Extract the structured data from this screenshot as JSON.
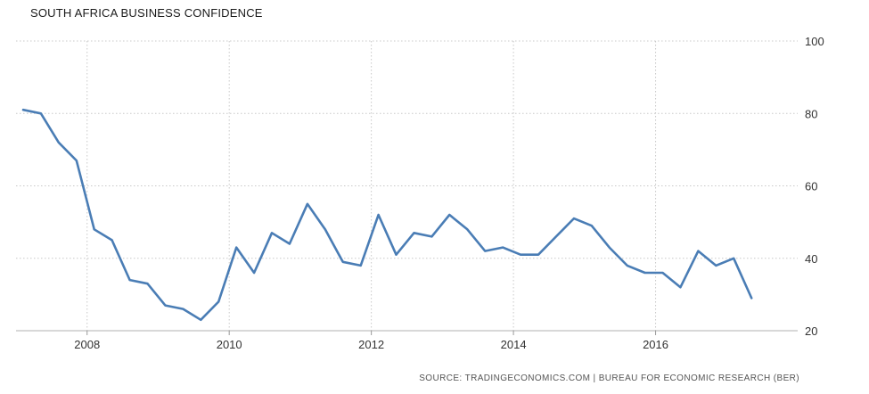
{
  "chart_data": {
    "type": "line",
    "title": "SOUTH AFRICA BUSINESS CONFIDENCE",
    "xlabel": "",
    "ylabel": "",
    "x_ticks": [
      "2008",
      "2010",
      "2012",
      "2014",
      "2016"
    ],
    "y_ticks": [
      20,
      40,
      60,
      80,
      100
    ],
    "ylim": [
      20,
      100
    ],
    "xlim": [
      2007.0,
      2018.0
    ],
    "grid": true,
    "legend": "none",
    "line_color": "#4a7db5",
    "source": "SOURCE: TRADINGECONOMICS.COM  |  BUREAU FOR ECONOMIC RESEARCH (BER)",
    "series": [
      {
        "x": [
          2007.1,
          2007.35,
          2007.6,
          2007.85,
          2008.1,
          2008.35,
          2008.6,
          2008.85,
          2009.1,
          2009.35,
          2009.6,
          2009.85,
          2010.1,
          2010.35,
          2010.6,
          2010.85,
          2011.1,
          2011.35,
          2011.6,
          2011.85,
          2012.1,
          2012.35,
          2012.6,
          2012.85,
          2013.1,
          2013.35,
          2013.6,
          2013.85,
          2014.1,
          2014.35,
          2014.6,
          2014.85,
          2015.1,
          2015.35,
          2015.6,
          2015.85,
          2016.1,
          2016.35,
          2016.6,
          2016.85,
          2017.1,
          2017.35
        ],
        "values": [
          81,
          80,
          72,
          67,
          48,
          45,
          34,
          33,
          27,
          26,
          23,
          28,
          43,
          36,
          47,
          44,
          55,
          48,
          39,
          38,
          52,
          41,
          47,
          46,
          52,
          48,
          42,
          43,
          41,
          41,
          46,
          51,
          49,
          43,
          38,
          36,
          36,
          32,
          42,
          38,
          40,
          29
        ]
      }
    ]
  }
}
